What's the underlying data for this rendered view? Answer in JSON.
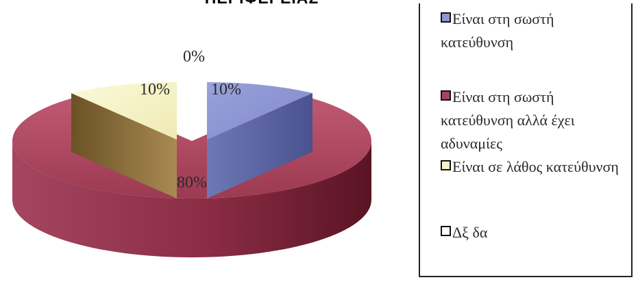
{
  "chart_data": {
    "type": "pie",
    "title": "ΠΕΡΙΦΕΡΕΙΑΣ",
    "slices": [
      {
        "label": "Είναι στη σωστή κατεύθυνση",
        "value": 10,
        "data_label": "10%",
        "color": "#8e97d4"
      },
      {
        "label": "Είναι στη σωστή κατεύθυνση αλλά έχει αδυναμίες",
        "value": 80,
        "data_label": "80%",
        "color": "#a8435e"
      },
      {
        "label": "Είναι σε λάθος κατεύθυνση",
        "value": 10,
        "data_label": "10%",
        "color": "#f6f4c6"
      },
      {
        "label": "Δξ δα",
        "value": 0,
        "data_label": "0%",
        "color": "#ffffff"
      }
    ],
    "legend_position": "right"
  }
}
